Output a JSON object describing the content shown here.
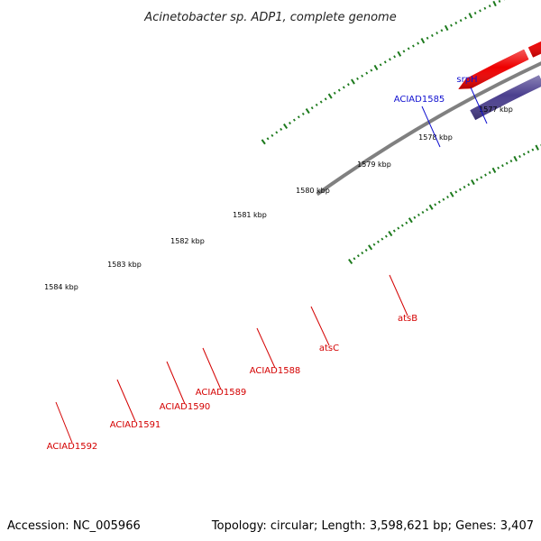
{
  "title": "Acinetobacter sp. ADP1, complete genome",
  "footer": {
    "accession": "Accession: NC_005966",
    "summary": "Topology: circular; Length: 3,598,621 bp; Genes: 3,407"
  },
  "ticks": [
    {
      "label": "1577 kbp"
    },
    {
      "label": "1578 kbp"
    },
    {
      "label": "1579 kbp"
    },
    {
      "label": "1580 kbp"
    },
    {
      "label": "1581 kbp"
    },
    {
      "label": "1582 kbp"
    },
    {
      "label": "1583 kbp"
    },
    {
      "label": "1584 kbp"
    }
  ],
  "colors": {
    "backbone": "#808080",
    "tick": "#1d7a1d",
    "label_red": "#d40000",
    "label_blue": "#1010d0",
    "cds_red": "#ee0000",
    "cds_navy": "#1c1c7a",
    "cds_slate": "#4b3f8e",
    "cds_lime": "#a8f03a",
    "cds_olive": "#5d8a12",
    "cds_blue": "#0000ee",
    "cds_steel": "#3d7ab8"
  },
  "gene_labels": [
    {
      "text": "srpH",
      "color": "blue"
    },
    {
      "text": "ACIAD1585",
      "color": "blue"
    },
    {
      "text": "atsB",
      "color": "red"
    },
    {
      "text": "atsC",
      "color": "red"
    },
    {
      "text": "ACIAD1588",
      "color": "red"
    },
    {
      "text": "ACIAD1589",
      "color": "red"
    },
    {
      "text": "ACIAD1590",
      "color": "red"
    },
    {
      "text": "ACIAD1591",
      "color": "red"
    },
    {
      "text": "ACIAD1592",
      "color": "red"
    }
  ]
}
